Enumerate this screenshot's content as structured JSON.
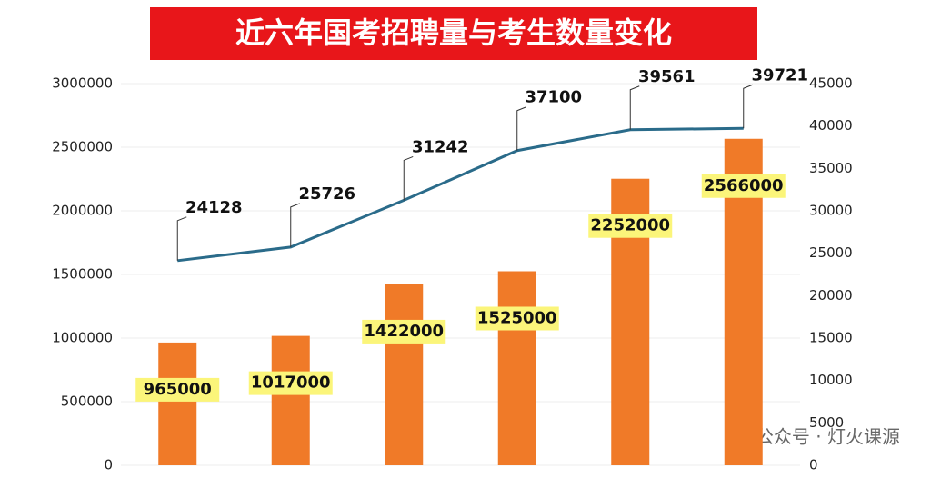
{
  "chart_data": {
    "type": "bar_line",
    "title": "近六年国考招聘量与考生数量变化",
    "categories": [
      null,
      null,
      null,
      null,
      null,
      null
    ],
    "series": [
      {
        "type": "bar",
        "color": "#f07a28",
        "values": [
          965000,
          1017000,
          1422000,
          1525000,
          2252000,
          2566000
        ]
      },
      {
        "type": "line",
        "axis": "y2",
        "color": "#2a6b8a",
        "values": [
          24128,
          25726,
          31242,
          37100,
          39561,
          39721
        ]
      }
    ],
    "ylim": [
      0,
      3000000
    ],
    "yticks": [
      0,
      500000,
      1000000,
      1500000,
      2000000,
      2500000,
      3000000
    ],
    "y2lim": [
      0,
      45000
    ],
    "y2ticks": [
      0,
      5000,
      10000,
      15000,
      20000,
      25000,
      30000,
      35000,
      40000,
      45000
    ],
    "watermark": "公众号 · 灯火课源"
  }
}
